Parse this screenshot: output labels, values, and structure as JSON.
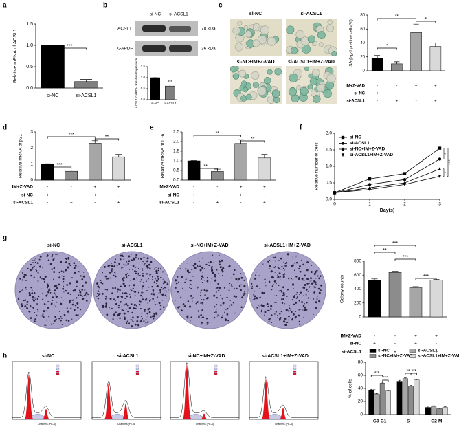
{
  "panels": [
    "a",
    "b",
    "c",
    "d",
    "e",
    "f",
    "g",
    "h"
  ],
  "blot": {
    "lanes": [
      "si-NC",
      "si-ACSL1"
    ],
    "bands": [
      "ACSL1",
      "GAPDH"
    ],
    "sizes": [
      "78 kDa",
      "36 kDa"
    ]
  },
  "photo_labels": {
    "c": [
      "si-NC",
      "si-ACSL1",
      "si-NC+IM+Z-VAD",
      "si-ACSL1+IM+Z-VAD"
    ],
    "g": [
      "si-NC",
      "si-ACSL1",
      "si-NC+IM+Z-VAD",
      "si-ACSL1+IM+Z-VAD"
    ],
    "h": [
      "si-NC",
      "si-ACSL1",
      "si-NC+IM+Z-VAD",
      "si-ACSL1+IM+Z-VAD"
    ]
  },
  "flow_xlabel": "Channels (PE-A)",
  "chart_data": [
    {
      "type": "bar",
      "ylabel": "Relative mRNA of ACSL1",
      "categories": [
        "si-NC",
        "si-ACSL1"
      ],
      "values": [
        1.0,
        0.15
      ],
      "errors": [
        0,
        0.05
      ],
      "colors": [
        "#000000",
        "#7f7f7f"
      ],
      "ylim": [
        0,
        1.5
      ],
      "yticks": [
        {
          "value": 0,
          "label": "0.0"
        },
        0.5,
        {
          "value": 1,
          "label": "1.0"
        },
        1.5
      ],
      "significance": [
        "***"
      ]
    },
    {
      "type": "bar",
      "ylabel": "ACSL1/GAPDH Relative Expression",
      "categories": [
        "si-NC",
        "si-ACSL1"
      ],
      "values": [
        1.0,
        0.62
      ],
      "errors": [
        0,
        0.05
      ],
      "colors": [
        "#000000",
        "#7f7f7f"
      ],
      "ylim": [
        0,
        1.5
      ],
      "yticks": [
        {
          "value": 0,
          "label": "0.0"
        },
        0.5,
        {
          "value": 1,
          "label": "1.0"
        },
        1.5
      ],
      "significance": [
        "***"
      ]
    },
    {
      "type": "bar",
      "ylabel": "SA-β-gal positive cells(%)",
      "values": [
        18,
        10,
        55,
        35
      ],
      "errors": [
        4,
        3,
        12,
        5
      ],
      "colors": [
        "#000000",
        "#8c8c8c",
        "#a6a6a6",
        "#d9d9d9"
      ],
      "ylim": [
        0,
        80
      ],
      "yticks": [
        0,
        20,
        40,
        60,
        80
      ],
      "significance": [
        "*",
        "**",
        "*"
      ],
      "treatments": [
        {
          "name": "IM+Z-VAD",
          "marks": [
            "-",
            "-",
            "+",
            "+"
          ]
        },
        {
          "name": "si-NC",
          "marks": [
            "+",
            "-",
            "+",
            "-"
          ]
        },
        {
          "name": "si-ACSL1",
          "marks": [
            "-",
            "+",
            "-",
            "+"
          ]
        }
      ]
    },
    {
      "type": "bar",
      "ylabel": "Relative mRNA of p21",
      "values": [
        1.0,
        0.55,
        2.3,
        1.45
      ],
      "errors": [
        0.02,
        0.08,
        0.15,
        0.15
      ],
      "colors": [
        "#000000",
        "#8c8c8c",
        "#a6a6a6",
        "#d9d9d9"
      ],
      "ylim": [
        0,
        3
      ],
      "yticks": [
        0,
        1,
        2,
        3
      ],
      "significance": [
        "***",
        "***",
        "**"
      ],
      "treatments": [
        {
          "name": "IM+Z-VAD",
          "marks": [
            "-",
            "-",
            "+",
            "+"
          ]
        },
        {
          "name": "si-NC",
          "marks": [
            "+",
            "-",
            "+",
            "-"
          ]
        },
        {
          "name": "si-ACSL1",
          "marks": [
            "-",
            "+",
            "-",
            "+"
          ]
        }
      ]
    },
    {
      "type": "bar",
      "ylabel": "Relative mRNA of IL-6",
      "values": [
        1.0,
        0.45,
        1.9,
        1.15
      ],
      "errors": [
        0.02,
        0.12,
        0.2,
        0.18
      ],
      "colors": [
        "#000000",
        "#8c8c8c",
        "#a6a6a6",
        "#d9d9d9"
      ],
      "ylim": [
        0,
        2.5
      ],
      "yticks": [
        {
          "value": 0,
          "label": "0.0"
        },
        0.5,
        {
          "value": 1,
          "label": "1.0"
        },
        1.5,
        {
          "value": 2,
          "label": "2.0"
        },
        2.5
      ],
      "significance": [
        "**",
        "**",
        "**"
      ],
      "treatments": [
        {
          "name": "IM+Z-VAD",
          "marks": [
            "-",
            "-",
            "+",
            "+"
          ]
        },
        {
          "name": "si-NC",
          "marks": [
            "+",
            "-",
            "+",
            "-"
          ]
        },
        {
          "name": "si-ACSL1",
          "marks": [
            "-",
            "+",
            "-",
            "+"
          ]
        }
      ]
    },
    {
      "type": "line",
      "xlabel": "Day(s)",
      "ylabel": "Relative number of cells",
      "x": [
        0,
        1,
        2,
        3
      ],
      "xlim": [
        0,
        3
      ],
      "xticks": [
        0,
        1,
        2,
        3
      ],
      "ylim": [
        0,
        2
      ],
      "yticks": [
        {
          "value": 0,
          "label": "0.0"
        },
        0.5,
        {
          "value": 1,
          "label": "1.0"
        },
        1.5,
        {
          "value": 2,
          "label": "2.0"
        }
      ],
      "series": [
        {
          "name": "si-NC",
          "color": "#000000",
          "marker": "square",
          "values": [
            0.2,
            0.62,
            0.78,
            1.55
          ]
        },
        {
          "name": "si-ACSL1",
          "color": "#000000",
          "marker": "circle",
          "values": [
            0.2,
            0.45,
            0.6,
            1.22
          ]
        },
        {
          "name": "si-NC+IM+Z-VAD",
          "color": "#000000",
          "marker": "triangle",
          "values": [
            0.2,
            0.35,
            0.5,
            0.92
          ]
        },
        {
          "name": "si-ACSL1+IM+Z-VAD",
          "color": "#000000",
          "marker": "triangle-down",
          "values": [
            0.2,
            0.3,
            0.45,
            0.7
          ]
        }
      ],
      "annotations": [
        "*",
        "*",
        "***"
      ]
    },
    {
      "type": "bar",
      "ylabel": "Colony counts",
      "values": [
        530,
        640,
        420,
        530
      ],
      "errors": [
        15,
        15,
        15,
        10
      ],
      "colors": [
        "#000000",
        "#8c8c8c",
        "#a6a6a6",
        "#d9d9d9"
      ],
      "ylim": [
        0,
        800
      ],
      "yticks": [
        0,
        200,
        400,
        600,
        800
      ],
      "significance": [
        "***",
        "**",
        "***",
        "***"
      ],
      "treatments": [
        {
          "name": "IM+Z-VAD",
          "marks": [
            "-",
            "-",
            "+",
            "+"
          ]
        },
        {
          "name": "si-NC",
          "marks": [
            "+",
            "-",
            "+",
            "-"
          ]
        },
        {
          "name": "si-ACSL1",
          "marks": [
            "-",
            "+",
            "-",
            "+"
          ]
        }
      ]
    },
    {
      "type": "grouped-bar",
      "ylabel": "% of cells",
      "categories": [
        "G0-G1",
        "S",
        "G2-M"
      ],
      "ylim": [
        0,
        80
      ],
      "yticks": [
        0,
        20,
        40,
        60,
        80
      ],
      "series": [
        {
          "name": "si-NC",
          "color": "#000000",
          "values": [
            37,
            51,
            11
          ],
          "errors": [
            1.5,
            1.5,
            2
          ]
        },
        {
          "name": "si-ACSL1",
          "color": "#a6a6a6",
          "values": [
            31,
            55,
            12
          ],
          "errors": [
            1,
            1.5,
            1.5
          ]
        },
        {
          "name": "si-NC+IM+Z-VAD",
          "color": "#8c8c8c",
          "values": [
            48,
            44,
            9
          ],
          "errors": [
            1.5,
            1,
            1
          ]
        },
        {
          "name": "si-ACSL1+IM+Z-VAD",
          "color": "#d9d9d9",
          "values": [
            36,
            53,
            11
          ],
          "errors": [
            1,
            1,
            1
          ]
        }
      ],
      "significance": [
        "**",
        "***",
        "***",
        "**",
        "***"
      ]
    }
  ]
}
